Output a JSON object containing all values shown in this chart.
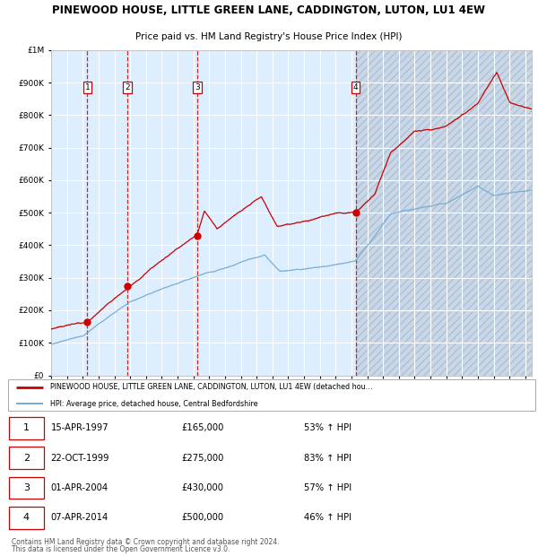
{
  "title1": "PINEWOOD HOUSE, LITTLE GREEN LANE, CADDINGTON, LUTON, LU1 4EW",
  "title2": "Price paid vs. HM Land Registry's House Price Index (HPI)",
  "sales": [
    {
      "label": "1",
      "date": 1997.29,
      "price": 165000
    },
    {
      "label": "2",
      "date": 1999.81,
      "price": 275000
    },
    {
      "label": "3",
      "date": 2004.25,
      "price": 430000
    },
    {
      "label": "4",
      "date": 2014.27,
      "price": 500000
    }
  ],
  "sale_dates_str": [
    "15-APR-1997",
    "22-OCT-1999",
    "01-APR-2004",
    "07-APR-2014"
  ],
  "sale_prices_str": [
    "£165,000",
    "£275,000",
    "£430,000",
    "£500,000"
  ],
  "sale_pcts": [
    "53%",
    "83%",
    "57%",
    "46%"
  ],
  "legend_line1": "PINEWOOD HOUSE, LITTLE GREEN LANE, CADDINGTON, LUTON, LU1 4EW (detached hou…",
  "legend_line2": "HPI: Average price, detached house, Central Bedfordshire",
  "footer1": "Contains HM Land Registry data © Crown copyright and database right 2024.",
  "footer2": "This data is licensed under the Open Government Licence v3.0.",
  "red_color": "#cc0000",
  "blue_color": "#7aadd4",
  "bg_color": "#ddeeff",
  "vline_color": "#cc0000",
  "ylim": [
    0,
    1000000
  ],
  "xlim": [
    1995.0,
    2025.4
  ],
  "x_ticks": [
    1995,
    1996,
    1997,
    1998,
    1999,
    2000,
    2001,
    2002,
    2003,
    2004,
    2005,
    2006,
    2007,
    2008,
    2009,
    2010,
    2011,
    2012,
    2013,
    2014,
    2015,
    2016,
    2017,
    2018,
    2019,
    2020,
    2021,
    2022,
    2023,
    2024,
    2025
  ]
}
